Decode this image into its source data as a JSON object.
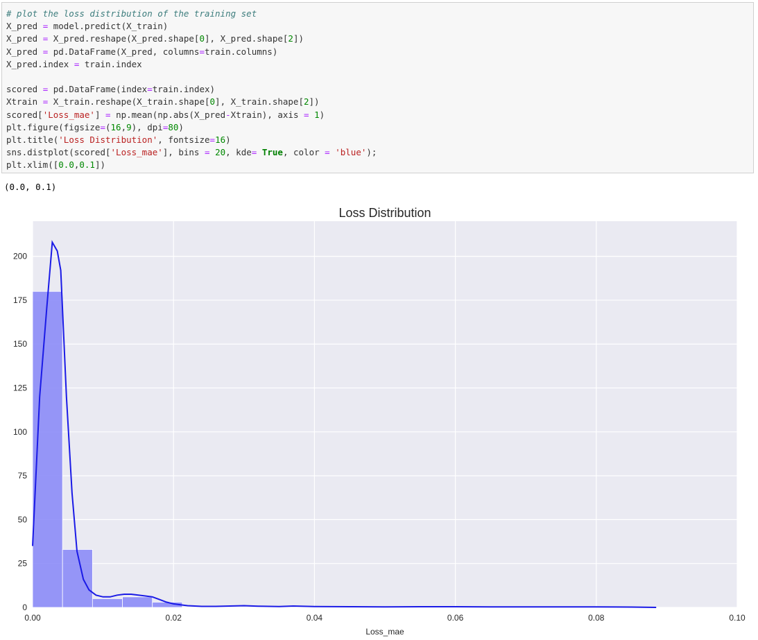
{
  "code_cell": {
    "lines": [
      [
        {
          "t": "# plot the loss distribution of the training set",
          "c": "comment"
        }
      ],
      [
        {
          "t": "X_pred "
        },
        {
          "t": "=",
          "c": "op"
        },
        {
          "t": " model.predict(X_train)"
        }
      ],
      [
        {
          "t": "X_pred "
        },
        {
          "t": "=",
          "c": "op"
        },
        {
          "t": " X_pred.reshape(X_pred.shape["
        },
        {
          "t": "0",
          "c": "num"
        },
        {
          "t": "], X_pred.shape["
        },
        {
          "t": "2",
          "c": "num"
        },
        {
          "t": "])"
        }
      ],
      [
        {
          "t": "X_pred "
        },
        {
          "t": "=",
          "c": "op"
        },
        {
          "t": " pd.DataFrame(X_pred, columns"
        },
        {
          "t": "=",
          "c": "op"
        },
        {
          "t": "train.columns)"
        }
      ],
      [
        {
          "t": "X_pred.index "
        },
        {
          "t": "=",
          "c": "op"
        },
        {
          "t": " train.index"
        }
      ],
      [
        {
          "t": ""
        }
      ],
      [
        {
          "t": "scored "
        },
        {
          "t": "=",
          "c": "op"
        },
        {
          "t": " pd.DataFrame(index"
        },
        {
          "t": "=",
          "c": "op"
        },
        {
          "t": "train.index)"
        }
      ],
      [
        {
          "t": "Xtrain "
        },
        {
          "t": "=",
          "c": "op"
        },
        {
          "t": " X_train.reshape(X_train.shape["
        },
        {
          "t": "0",
          "c": "num"
        },
        {
          "t": "], X_train.shape["
        },
        {
          "t": "2",
          "c": "num"
        },
        {
          "t": "])"
        }
      ],
      [
        {
          "t": "scored["
        },
        {
          "t": "'Loss_mae'",
          "c": "str"
        },
        {
          "t": "] "
        },
        {
          "t": "=",
          "c": "op"
        },
        {
          "t": " np.mean(np.abs(X_pred"
        },
        {
          "t": "-",
          "c": "op"
        },
        {
          "t": "Xtrain), axis "
        },
        {
          "t": "=",
          "c": "op"
        },
        {
          "t": " "
        },
        {
          "t": "1",
          "c": "num"
        },
        {
          "t": ")"
        }
      ],
      [
        {
          "t": "plt.figure(figsize"
        },
        {
          "t": "=",
          "c": "op"
        },
        {
          "t": "("
        },
        {
          "t": "16",
          "c": "num"
        },
        {
          "t": ","
        },
        {
          "t": "9",
          "c": "num"
        },
        {
          "t": "), dpi"
        },
        {
          "t": "=",
          "c": "op"
        },
        {
          "t": "80",
          "c": "num"
        },
        {
          "t": ")"
        }
      ],
      [
        {
          "t": "plt.title("
        },
        {
          "t": "'Loss Distribution'",
          "c": "str"
        },
        {
          "t": ", fontsize"
        },
        {
          "t": "=",
          "c": "op"
        },
        {
          "t": "16",
          "c": "num"
        },
        {
          "t": ")"
        }
      ],
      [
        {
          "t": "sns.distplot(scored["
        },
        {
          "t": "'Loss_mae'",
          "c": "str"
        },
        {
          "t": "], bins "
        },
        {
          "t": "=",
          "c": "op"
        },
        {
          "t": " "
        },
        {
          "t": "20",
          "c": "num"
        },
        {
          "t": ", kde"
        },
        {
          "t": "=",
          "c": "op"
        },
        {
          "t": " "
        },
        {
          "t": "True",
          "c": "kw"
        },
        {
          "t": ", color "
        },
        {
          "t": "=",
          "c": "op"
        },
        {
          "t": " "
        },
        {
          "t": "'blue'",
          "c": "str"
        },
        {
          "t": ");"
        }
      ],
      [
        {
          "t": "plt.xlim(["
        },
        {
          "t": "0.0",
          "c": "num"
        },
        {
          "t": ","
        },
        {
          "t": "0.1",
          "c": "num"
        },
        {
          "t": "])"
        }
      ]
    ]
  },
  "output_text": "(0.0, 0.1)",
  "colors": {
    "plot_bg": "#eaeaf2",
    "grid": "#ffffff",
    "bar_fill": "#8c8cf7",
    "kde_line": "#1a1ae6",
    "comment": "#3d7d7d",
    "operator": "#aa22ff",
    "number": "#008800",
    "string": "#ba2121",
    "keyword": "#008000"
  },
  "chart_data": {
    "type": "bar",
    "title": "Loss Distribution",
    "xlabel": "Loss_mae",
    "ylabel": "",
    "xlim": [
      0.0,
      0.1
    ],
    "ylim": [
      0,
      220
    ],
    "xticks": [
      "0.00",
      "0.02",
      "0.04",
      "0.06",
      "0.08",
      "0.10"
    ],
    "yticks": [
      "0",
      "25",
      "50",
      "75",
      "100",
      "125",
      "150",
      "175",
      "200"
    ],
    "grid": true,
    "histogram": {
      "bin_edges": [
        0.0,
        0.00425,
        0.0085,
        0.01275,
        0.017,
        0.02125
      ],
      "values": [
        180,
        33,
        5,
        6,
        3
      ]
    },
    "kde": {
      "x": [
        0.0,
        0.001,
        0.002,
        0.0028,
        0.0035,
        0.004,
        0.0048,
        0.0056,
        0.0063,
        0.0072,
        0.008,
        0.009,
        0.01,
        0.011,
        0.012,
        0.013,
        0.014,
        0.015,
        0.016,
        0.017,
        0.018,
        0.019,
        0.02,
        0.021,
        0.022,
        0.024,
        0.026,
        0.028,
        0.03,
        0.032,
        0.035,
        0.037,
        0.04,
        0.045,
        0.05,
        0.055,
        0.06,
        0.065,
        0.07,
        0.075,
        0.08,
        0.085,
        0.0885
      ],
      "y": [
        35,
        120,
        170,
        208,
        203,
        192,
        120,
        65,
        32,
        16,
        10,
        7,
        6,
        6,
        7,
        7.5,
        7.5,
        7,
        6.5,
        6,
        4.5,
        3,
        2,
        1.5,
        1,
        0.6,
        0.6,
        0.8,
        1,
        0.7,
        0.5,
        0.8,
        0.5,
        0.4,
        0.3,
        0.4,
        0.4,
        0.3,
        0.3,
        0.3,
        0.3,
        0.2,
        0
      ]
    }
  }
}
